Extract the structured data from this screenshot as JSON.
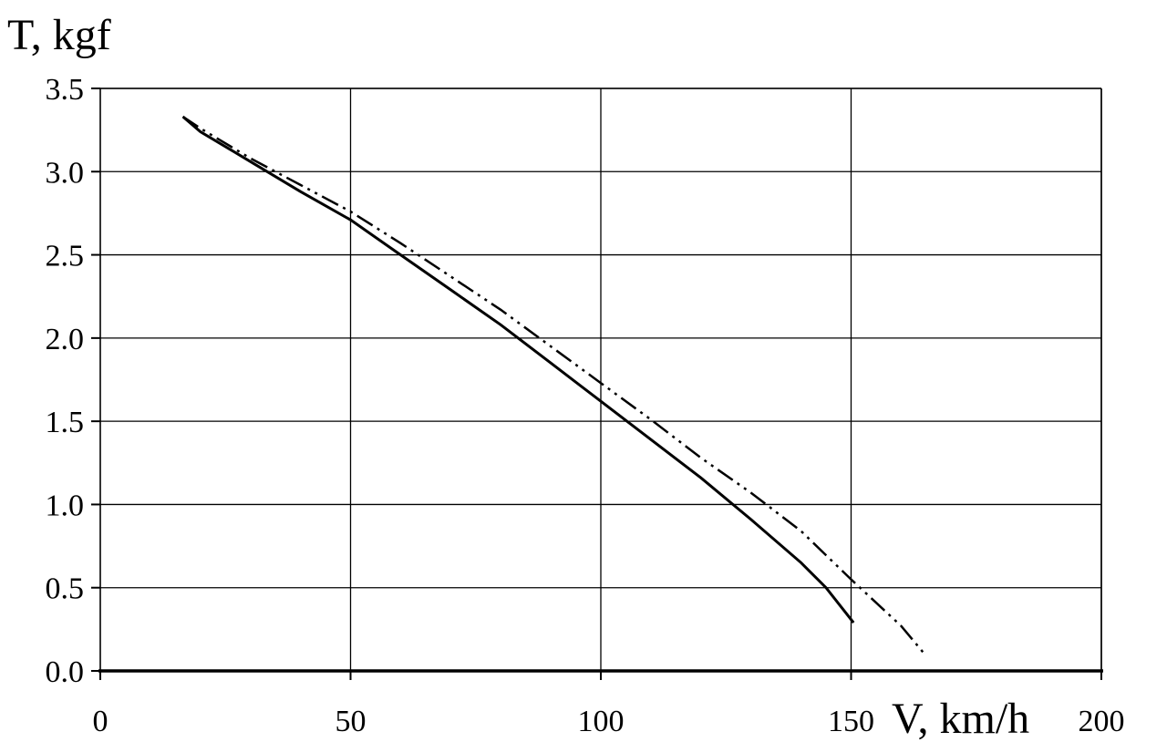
{
  "chart_data": {
    "type": "line",
    "title": "",
    "xlabel": "V, km/h",
    "ylabel": "T, kgf",
    "xlim": [
      0,
      200
    ],
    "ylim": [
      0,
      3.5
    ],
    "x_ticks": [
      "0",
      "50",
      "100",
      "150",
      "200"
    ],
    "y_ticks": [
      "0.0",
      "0.5",
      "1.0",
      "1.5",
      "2.0",
      "2.5",
      "3.0",
      "3.5"
    ],
    "grid": true,
    "series": [
      {
        "style": "solid",
        "color": "#000000",
        "x": [
          16.5,
          20,
          30,
          40,
          50,
          60,
          70,
          80,
          90,
          100,
          110,
          120,
          130,
          140,
          145,
          150.5
        ],
        "y": [
          3.33,
          3.24,
          3.06,
          2.88,
          2.71,
          2.5,
          2.29,
          2.08,
          1.85,
          1.62,
          1.39,
          1.16,
          0.91,
          0.65,
          0.5,
          0.29
        ]
      },
      {
        "style": "dash-dot-dot",
        "color": "#000000",
        "x": [
          16.5,
          20,
          30,
          40,
          50,
          60,
          70,
          80,
          90,
          100,
          110,
          120,
          130,
          140,
          150,
          160,
          165
        ],
        "y": [
          3.33,
          3.26,
          3.08,
          2.92,
          2.76,
          2.57,
          2.37,
          2.17,
          1.95,
          1.73,
          1.51,
          1.28,
          1.07,
          0.84,
          0.55,
          0.27,
          0.09
        ]
      }
    ]
  }
}
